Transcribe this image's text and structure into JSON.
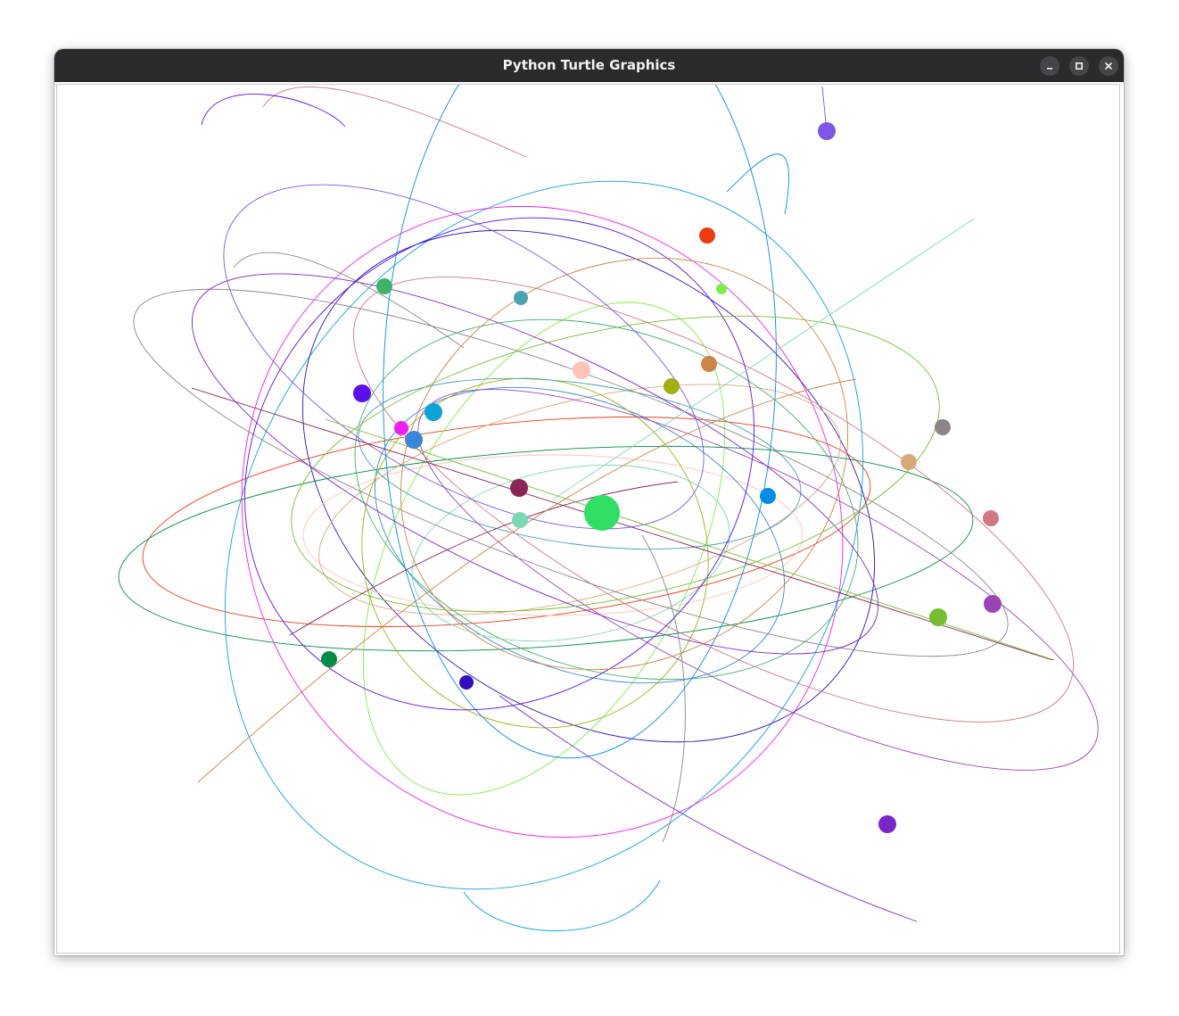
{
  "window": {
    "title": "Python Turtle Graphics",
    "controls": {
      "minimize_icon": "minimize-icon",
      "maximize_icon": "maximize-icon",
      "close_icon": "close-icon"
    },
    "titlebar_color": "#2b2b2e",
    "canvas_background": "#ffffff"
  },
  "scene": {
    "bodies": [
      {
        "name": "sun",
        "color": "#2fe065"
      },
      {
        "name": "body-1",
        "color": "#7b58e6"
      },
      {
        "name": "body-2",
        "color": "#ef3a12"
      },
      {
        "name": "body-3",
        "color": "#3fb26a"
      },
      {
        "name": "body-4",
        "color": "#4aa3b1"
      },
      {
        "name": "body-5",
        "color": "#7cf043"
      },
      {
        "name": "body-6",
        "color": "#5a10ec"
      },
      {
        "name": "body-7",
        "color": "#ffc3b8"
      },
      {
        "name": "body-8",
        "color": "#cc8449"
      },
      {
        "name": "body-9",
        "color": "#a0b011"
      },
      {
        "name": "body-10",
        "color": "#f21df2"
      },
      {
        "name": "body-11",
        "color": "#0aa3d6"
      },
      {
        "name": "body-12",
        "color": "#3a86d9"
      },
      {
        "name": "body-13",
        "color": "#8b8589"
      },
      {
        "name": "body-14",
        "color": "#d9a877"
      },
      {
        "name": "body-15",
        "color": "#8a2556"
      },
      {
        "name": "body-16",
        "color": "#7ad8b3"
      },
      {
        "name": "body-17",
        "color": "#008de3"
      },
      {
        "name": "body-18",
        "color": "#d27686"
      },
      {
        "name": "body-19",
        "color": "#9b44b6"
      },
      {
        "name": "body-20",
        "color": "#76bd32"
      },
      {
        "name": "body-21",
        "color": "#008c43"
      },
      {
        "name": "body-22",
        "color": "#2f0fc0"
      },
      {
        "name": "body-23",
        "color": "#7b26c9"
      }
    ]
  }
}
